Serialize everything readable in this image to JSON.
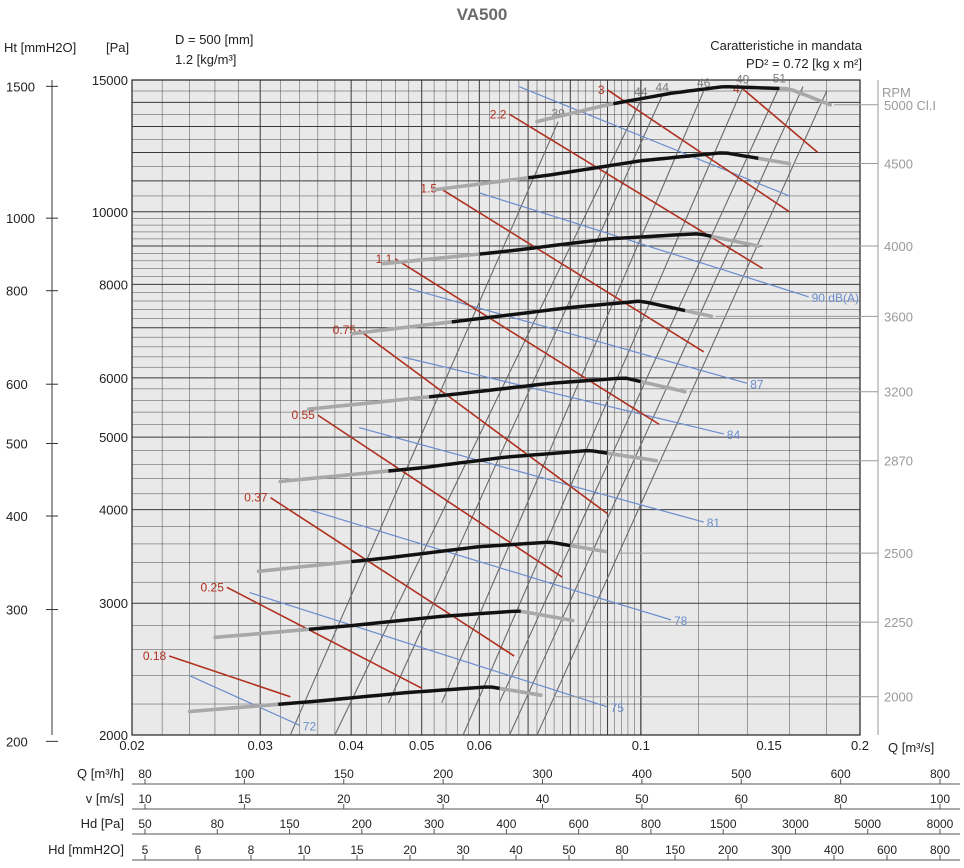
{
  "title": "VA500",
  "header": {
    "left_axis_title": "Ht [mmH2O]",
    "pa_title": "[Pa]",
    "diameter": "D = 500 [mm]",
    "density": "1.2 [kg/m³]",
    "right_title": "Caratteristiche in mandata",
    "inertia": "PD² = 0.72 [kg x m²]",
    "rpm_label": "RPM",
    "q_axis_label": "Q [m³/s]"
  },
  "colors": {
    "grid": "#3a3a3a",
    "plot_bg": "#e9e9e9",
    "curve_grey": "#a8a8a8",
    "curve_black": "#111111",
    "power_red": "#b0301f",
    "noise_blue": "#6b8ccc",
    "eff_grey": "#6a6a6a"
  },
  "chart_data": {
    "type": "line",
    "x_scale": "log",
    "y_scale": "log",
    "xlim": [
      0.02,
      0.2
    ],
    "ylim": [
      2000,
      15000
    ],
    "x_ticks": [
      {
        "v": 0.02,
        "label": "0.02"
      },
      {
        "v": 0.03,
        "label": "0.03"
      },
      {
        "v": 0.04,
        "label": "0.04"
      },
      {
        "v": 0.05,
        "label": "0.05"
      },
      {
        "v": 0.06,
        "label": "0.06"
      },
      {
        "v": 0.1,
        "label": "0.1"
      },
      {
        "v": 0.15,
        "label": "0.15"
      },
      {
        "v": 0.2,
        "label": "0.2"
      }
    ],
    "y_ticks": [
      {
        "v": 2000,
        "label": "2000"
      },
      {
        "v": 3000,
        "label": "3000"
      },
      {
        "v": 4000,
        "label": "4000"
      },
      {
        "v": 5000,
        "label": "5000"
      },
      {
        "v": 6000,
        "label": "6000"
      },
      {
        "v": 8000,
        "label": "8000"
      },
      {
        "v": 10000,
        "label": "10000"
      },
      {
        "v": 15000,
        "label": "15000"
      }
    ],
    "ht_ticks": [
      {
        "v": 200,
        "label": "200"
      },
      {
        "v": 300,
        "label": "300"
      },
      {
        "v": 400,
        "label": "400"
      },
      {
        "v": 500,
        "label": "500"
      },
      {
        "v": 600,
        "label": "600"
      },
      {
        "v": 800,
        "label": "800"
      },
      {
        "v": 1000,
        "label": "1000"
      },
      {
        "v": 1500,
        "label": "1500"
      }
    ],
    "rpm_curves": [
      {
        "rpm": "5000 Cl.I",
        "x": [
          0.072,
          0.09,
          0.11,
          0.13,
          0.16,
          0.182
        ],
        "y": [
          13200,
          13900,
          14400,
          14700,
          14600,
          13900
        ],
        "bold": [
          0.09,
          0.155
        ]
      },
      {
        "rpm": "4500",
        "x": [
          0.052,
          0.075,
          0.1,
          0.13,
          0.16
        ],
        "y": [
          10700,
          11200,
          11700,
          12000,
          11600
        ],
        "bold": [
          0.07,
          0.145
        ]
      },
      {
        "rpm": "4000",
        "x": [
          0.043,
          0.065,
          0.09,
          0.12,
          0.145
        ],
        "y": [
          8500,
          8850,
          9200,
          9350,
          9000
        ],
        "bold": [
          0.06,
          0.125
        ]
      },
      {
        "rpm": "3600",
        "x": [
          0.039,
          0.06,
          0.08,
          0.1,
          0.125
        ],
        "y": [
          6850,
          7200,
          7450,
          7600,
          7250
        ],
        "bold": [
          0.055,
          0.115
        ]
      },
      {
        "rpm": "3200",
        "x": [
          0.035,
          0.055,
          0.075,
          0.095,
          0.115
        ],
        "y": [
          5450,
          5700,
          5900,
          6000,
          5750
        ],
        "bold": [
          0.05,
          0.1
        ]
      },
      {
        "rpm": "2870",
        "x": [
          0.031,
          0.05,
          0.065,
          0.085,
          0.105
        ],
        "y": [
          4350,
          4550,
          4700,
          4800,
          4650
        ],
        "bold": [
          0.045,
          0.09
        ]
      },
      {
        "rpm": "2500",
        "x": [
          0.029,
          0.045,
          0.06,
          0.075,
          0.092
        ],
        "y": [
          3300,
          3450,
          3570,
          3620,
          3500
        ],
        "bold": [
          0.04,
          0.08
        ]
      },
      {
        "rpm": "2250",
        "x": [
          0.026,
          0.04,
          0.053,
          0.068,
          0.083
        ],
        "y": [
          2700,
          2800,
          2880,
          2930,
          2830
        ],
        "bold": [
          0.035,
          0.07
        ]
      },
      {
        "rpm": "2000",
        "x": [
          0.024,
          0.036,
          0.048,
          0.062,
          0.075
        ],
        "y": [
          2150,
          2220,
          2280,
          2320,
          2250
        ],
        "bold": [
          0.031,
          0.064
        ]
      }
    ],
    "power_lines": [
      {
        "label": "0.18",
        "x": [
          0.0225,
          0.033
        ],
        "y": [
          2550,
          2250
        ]
      },
      {
        "label": "0.25",
        "x": [
          0.027,
          0.05
        ],
        "y": [
          3150,
          2310
        ]
      },
      {
        "label": "0.37",
        "x": [
          0.031,
          0.067
        ],
        "y": [
          4150,
          2550
        ]
      },
      {
        "label": "0.55",
        "x": [
          0.036,
          0.078
        ],
        "y": [
          5350,
          3250
        ]
      },
      {
        "label": "0.75",
        "x": [
          0.041,
          0.09
        ],
        "y": [
          6950,
          3950
        ]
      },
      {
        "label": "1.1",
        "x": [
          0.046,
          0.106
        ],
        "y": [
          8650,
          5200
        ]
      },
      {
        "label": "1.5",
        "x": [
          0.053,
          0.122
        ],
        "y": [
          10750,
          6500
        ]
      },
      {
        "label": "2.2",
        "x": [
          0.066,
          0.147
        ],
        "y": [
          13500,
          8400
        ]
      },
      {
        "label": "3",
        "x": [
          0.09,
          0.16
        ],
        "y": [
          14550,
          10000
        ]
      },
      {
        "label": "4",
        "x": [
          0.138,
          0.175
        ],
        "y": [
          14600,
          12000
        ]
      }
    ],
    "noise_lines": [
      {
        "label": "72",
        "x": [
          0.024,
          0.034
        ],
        "y": [
          2400,
          2060
        ]
      },
      {
        "label": "75",
        "x": [
          0.029,
          0.09
        ],
        "y": [
          3100,
          2180
        ]
      },
      {
        "label": "78",
        "x": [
          0.035,
          0.11
        ],
        "y": [
          4000,
          2850
        ]
      },
      {
        "label": "81",
        "x": [
          0.041,
          0.122
        ],
        "y": [
          5150,
          3850
        ]
      },
      {
        "label": "84",
        "x": [
          0.047,
          0.13
        ],
        "y": [
          6400,
          5050
        ]
      },
      {
        "label": "87",
        "x": [
          0.048,
          0.14
        ],
        "y": [
          7900,
          5900
        ]
      },
      {
        "label": "90 dB(A)",
        "x": [
          0.06,
          0.17
        ],
        "y": [
          10600,
          7700
        ]
      },
      {
        "label": "",
        "x": [
          0.068,
          0.16
        ],
        "y": [
          14700,
          10500
        ]
      }
    ],
    "efficiency_lines": [
      {
        "label": "39",
        "x": [
          0.033,
          0.077
        ],
        "y": [
          2000,
          13200
        ]
      },
      {
        "label": "44",
        "x": [
          0.038,
          0.1
        ],
        "y": [
          2000,
          14100
        ]
      },
      {
        "label": "44",
        "x": [
          0.043,
          0.107
        ],
        "y": [
          2000,
          14300
        ]
      },
      {
        "label": "46",
        "x": [
          0.051,
          0.122
        ],
        "y": [
          2000,
          14500
        ]
      },
      {
        "label": "49",
        "x": [
          0.057,
          0.138
        ],
        "y": [
          2000,
          14650
        ]
      },
      {
        "label": "51",
        "x": [
          0.061,
          0.155
        ],
        "y": [
          2000,
          14700
        ]
      },
      {
        "label": "",
        "x": [
          0.066,
          0.167
        ],
        "y": [
          2000,
          14700
        ]
      },
      {
        "label": "",
        "x": [
          0.072,
          0.18
        ],
        "y": [
          2000,
          14500
        ]
      }
    ]
  },
  "bottom_scales": [
    {
      "label": "Q [m³/h]",
      "ticks": [
        "80",
        "100",
        "150",
        "200",
        "300",
        "400",
        "500",
        "600",
        "800"
      ]
    },
    {
      "label": "v [m/s]",
      "ticks": [
        "10",
        "15",
        "20",
        "30",
        "40",
        "50",
        "60",
        "80",
        "100"
      ]
    },
    {
      "label": "Hd [Pa]",
      "ticks": [
        "50",
        "80",
        "150",
        "200",
        "300",
        "400",
        "600",
        "800",
        "1500",
        "3000",
        "5000",
        "8000"
      ]
    },
    {
      "label": "Hd [mmH2O]",
      "ticks": [
        "5",
        "6",
        "8",
        "10",
        "15",
        "20",
        "30",
        "40",
        "50",
        "80",
        "150",
        "200",
        "300",
        "400",
        "600",
        "800"
      ]
    }
  ]
}
